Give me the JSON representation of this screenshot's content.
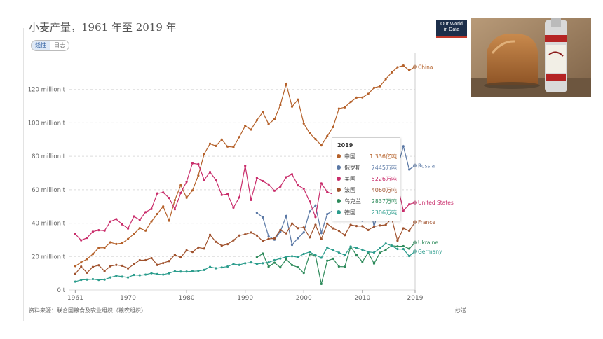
{
  "title": "小麦产量，1961 年至 2019 年",
  "toggle": {
    "linear": "线性",
    "log": "日志"
  },
  "logo": {
    "line1": "Our World",
    "line2": "in Data"
  },
  "source": "资料来源：联合国粮食及农业组织（粮农组织）",
  "share": "抄送",
  "tooltip": {
    "year": "2019",
    "rows": [
      {
        "name": "中国",
        "value": "1.336亿吨",
        "color": "#b5612a"
      },
      {
        "name": "俄罗斯",
        "value": "7445万吨",
        "color": "#5a78a5"
      },
      {
        "name": "美国",
        "value": "5226万吨",
        "color": "#c92d6b"
      },
      {
        "name": "法国",
        "value": "4060万吨",
        "color": "#a0522d"
      },
      {
        "name": "乌克兰",
        "value": "2837万吨",
        "color": "#2d8a5a"
      },
      {
        "name": "德国",
        "value": "2306万吨",
        "color": "#2a9c8c"
      }
    ]
  },
  "chart_data": {
    "type": "line",
    "xlabel": "",
    "ylabel": "",
    "ylim": [
      0,
      140000000
    ],
    "xlim": [
      1960,
      2019
    ],
    "y_ticks": [
      {
        "value": 0,
        "label": "0 t"
      },
      {
        "value": 20000000,
        "label": "20 million t"
      },
      {
        "value": 40000000,
        "label": "40 million t"
      },
      {
        "value": 60000000,
        "label": "60 million t"
      },
      {
        "value": 80000000,
        "label": "80 million t"
      },
      {
        "value": 100000000,
        "label": "100 million t"
      },
      {
        "value": 120000000,
        "label": "120 million t"
      }
    ],
    "x_ticks": [
      {
        "value": 1961,
        "label": "1961"
      },
      {
        "value": 1970,
        "label": "1970"
      },
      {
        "value": 1980,
        "label": "1980"
      },
      {
        "value": 1990,
        "label": "1990"
      },
      {
        "value": 2000,
        "label": "2000"
      },
      {
        "value": 2010,
        "label": "2010"
      },
      {
        "value": 2019,
        "label": "2019"
      }
    ],
    "grid": true,
    "series": [
      {
        "name": "China",
        "color": "#b5612a",
        "start": 1961,
        "values": [
          14.3,
          16.5,
          18.5,
          21.5,
          25.2,
          25.3,
          28.5,
          27.5,
          28.0,
          30.5,
          33.5,
          37.0,
          35.5,
          41.0,
          45.5,
          50.0,
          41.5,
          53.8,
          62.7,
          55.2,
          59.6,
          68.5,
          81.4,
          87.5,
          86.2,
          90.0,
          85.8,
          85.5,
          91.5,
          98.2,
          96.0,
          101.6,
          106.4,
          99.3,
          102.2,
          110.6,
          123.3,
          109.7,
          113.9,
          99.6,
          93.9,
          90.3,
          86.5,
          92.0,
          97.5,
          108.5,
          109.3,
          112.5,
          115.1,
          115.2,
          117.4,
          121.0,
          121.9,
          126.2,
          130.2,
          133.3,
          134.3,
          131.4,
          133.6
        ]
      },
      {
        "name": "Russia",
        "color": "#5a78a5",
        "start": 1992,
        "values": [
          46.2,
          43.5,
          32.1,
          30.1,
          34.9,
          44.3,
          27.0,
          31.0,
          34.5,
          47.0,
          50.6,
          34.1,
          45.4,
          47.6,
          45.0,
          49.4,
          63.8,
          61.7,
          41.5,
          56.2,
          37.7,
          52.1,
          59.7,
          61.8,
          73.3,
          86.0,
          72.1,
          74.5
        ]
      },
      {
        "name": "United States",
        "color": "#c92d6b",
        "start": 1961,
        "values": [
          33.5,
          29.7,
          31.2,
          34.9,
          35.8,
          35.5,
          41.0,
          42.4,
          39.3,
          36.8,
          44.0,
          42.0,
          46.6,
          48.5,
          57.8,
          58.4,
          55.1,
          48.3,
          58.1,
          64.8,
          75.8,
          75.3,
          65.9,
          70.6,
          65.9,
          56.9,
          57.4,
          49.3,
          55.4,
          74.3,
          53.9,
          67.1,
          65.2,
          63.2,
          59.4,
          61.9,
          67.5,
          69.3,
          62.6,
          60.6,
          53.0,
          43.7,
          63.8,
          58.7,
          57.3,
          49.2,
          55.8,
          68.0,
          60.1,
          60.1,
          54.4,
          61.8,
          58.1,
          55.1,
          55.8,
          62.8,
          47.4,
          51.3,
          52.3
        ]
      },
      {
        "name": "France",
        "color": "#a0522d",
        "start": 1961,
        "values": [
          9.6,
          14.0,
          10.3,
          13.8,
          14.8,
          11.3,
          14.2,
          15.0,
          14.5,
          12.9,
          15.4,
          17.8,
          17.8,
          19.1,
          15.0,
          16.1,
          17.3,
          21.1,
          19.5,
          23.7,
          22.8,
          25.4,
          24.8,
          33.0,
          28.8,
          26.5,
          27.4,
          29.7,
          32.6,
          33.3,
          34.4,
          32.6,
          29.2,
          30.6,
          30.9,
          35.9,
          33.9,
          39.8,
          37.0,
          37.4,
          31.5,
          39.0,
          30.5,
          39.7,
          36.9,
          35.4,
          32.8,
          39.0,
          38.3,
          38.2,
          35.9,
          38.0,
          38.6,
          39.0,
          42.8,
          29.5,
          36.9,
          35.4,
          40.6
        ]
      },
      {
        "name": "Ukraine",
        "color": "#2d8a5a",
        "start": 1992,
        "values": [
          19.5,
          21.8,
          13.9,
          16.3,
          13.5,
          18.4,
          14.9,
          13.6,
          10.2,
          21.3,
          20.6,
          3.6,
          17.5,
          18.7,
          14.0,
          13.9,
          25.9,
          20.9,
          16.9,
          22.3,
          15.8,
          22.3,
          24.1,
          26.5,
          26.1,
          26.2,
          24.7,
          28.4
        ]
      },
      {
        "name": "Germany",
        "color": "#2a9c8c",
        "start": 1961,
        "values": [
          5.0,
          6.0,
          6.2,
          6.5,
          6.0,
          6.2,
          7.5,
          8.5,
          8.0,
          7.5,
          9.0,
          8.8,
          9.2,
          10.0,
          9.5,
          9.2,
          10.0,
          11.2,
          11.0,
          11.0,
          11.2,
          11.4,
          12.0,
          13.8,
          13.0,
          13.5,
          14.0,
          15.5,
          15.0,
          16.0,
          16.5,
          15.5,
          16.0,
          16.5,
          17.8,
          18.8,
          19.8,
          20.2,
          19.6,
          21.6,
          22.8,
          20.8,
          19.3,
          25.4,
          23.7,
          22.4,
          20.8,
          26.0,
          25.2,
          24.1,
          22.8,
          22.4,
          25.0,
          27.8,
          26.5,
          24.5,
          24.5,
          20.3,
          23.1
        ]
      }
    ]
  }
}
